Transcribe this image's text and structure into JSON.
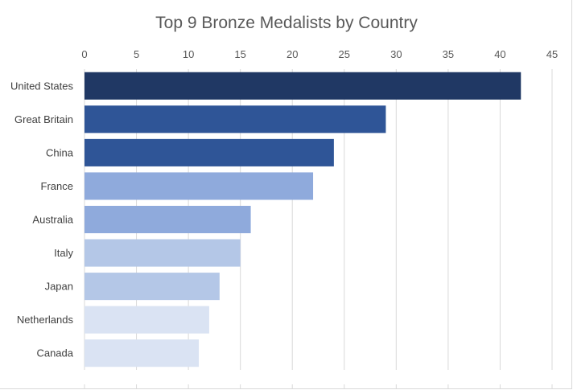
{
  "chart_data": {
    "type": "bar",
    "orientation": "horizontal",
    "title": "Top 9 Bronze Medalists by Country",
    "xlabel": "",
    "ylabel": "",
    "categories": [
      "United States",
      "Great Britain",
      "China",
      "France",
      "Australia",
      "Italy",
      "Japan",
      "Netherlands",
      "Canada"
    ],
    "values": [
      42,
      29,
      24,
      22,
      16,
      15,
      13,
      12,
      11
    ],
    "bar_colors": [
      "#203864",
      "#2f5597",
      "#2f5597",
      "#8faadc",
      "#8faadc",
      "#b4c7e7",
      "#b4c7e7",
      "#dae3f3",
      "#dae3f3"
    ],
    "xlim": [
      0,
      45
    ],
    "x_ticks": [
      0,
      5,
      10,
      15,
      20,
      25,
      30,
      35,
      40,
      45
    ],
    "x_axis_position": "top",
    "grid": true,
    "legend": "none"
  }
}
